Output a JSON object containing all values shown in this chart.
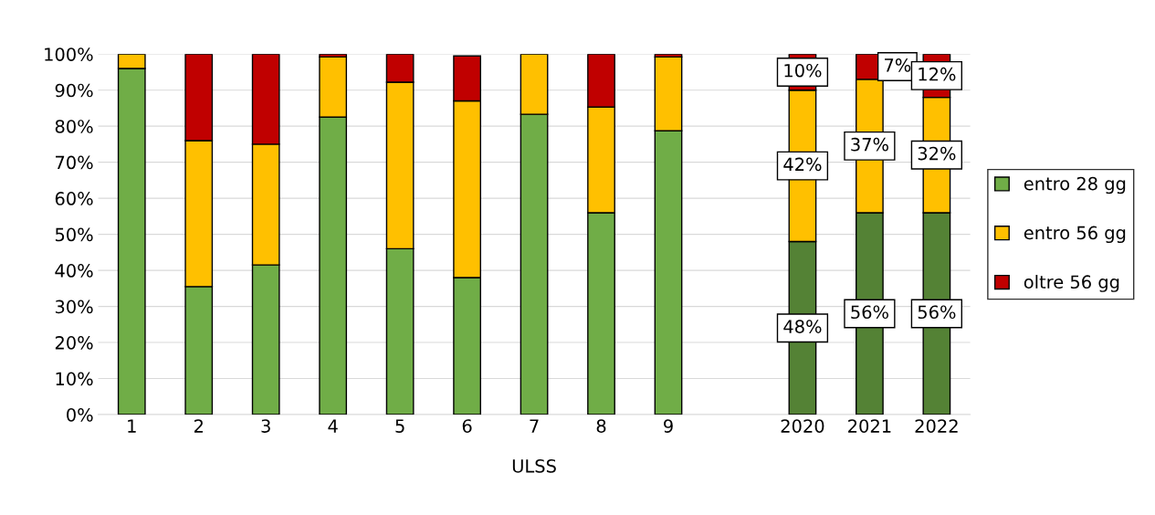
{
  "chart_data": {
    "type": "bar",
    "stacked": true,
    "xlabel": "ULSS",
    "categories": [
      "1",
      "2",
      "3",
      "4",
      "5",
      "6",
      "7",
      "8",
      "9",
      null,
      "2020",
      "2021",
      "2022"
    ],
    "series": [
      {
        "name": "entro 28 gg",
        "color": "#70ad47",
        "colors": [
          "#70ad47",
          "#70ad47",
          "#70ad47",
          "#70ad47",
          "#70ad47",
          "#70ad47",
          "#70ad47",
          "#70ad47",
          "#70ad47",
          null,
          "#548235",
          "#548235",
          "#548235"
        ],
        "values": [
          96,
          35.5,
          41.5,
          82.5,
          46,
          38,
          83.3,
          56,
          78.7,
          null,
          48,
          56,
          56
        ],
        "value_labels": [
          null,
          null,
          null,
          null,
          null,
          null,
          null,
          null,
          null,
          null,
          "48%",
          "56%",
          "56%"
        ]
      },
      {
        "name": "entro 56 gg",
        "color": "#ffc000",
        "values": [
          4,
          40.5,
          33.5,
          16.7,
          46.2,
          49,
          16.7,
          29.3,
          20.5,
          null,
          42,
          37,
          32
        ],
        "value_labels": [
          null,
          null,
          null,
          null,
          null,
          null,
          null,
          null,
          null,
          null,
          "42%",
          "37%",
          "32%"
        ]
      },
      {
        "name": "oltre 56 gg",
        "color": "#c00000",
        "values": [
          0,
          24,
          25,
          0.8,
          7.8,
          12.5,
          0,
          14.7,
          0.8,
          null,
          10,
          7,
          12
        ],
        "value_labels": [
          null,
          null,
          null,
          null,
          null,
          null,
          null,
          null,
          null,
          null,
          "10%",
          "7%",
          "12%"
        ]
      }
    ],
    "ylim": [
      0,
      100
    ],
    "yticks": [
      {
        "value": 0,
        "label": "0%"
      },
      {
        "value": 10,
        "label": "10%"
      },
      {
        "value": 20,
        "label": "20%"
      },
      {
        "value": 30,
        "label": "30%"
      },
      {
        "value": 40,
        "label": "40%"
      },
      {
        "value": 50,
        "label": "50%"
      },
      {
        "value": 60,
        "label": "60%"
      },
      {
        "value": 70,
        "label": "70%"
      },
      {
        "value": 80,
        "label": "80%"
      },
      {
        "value": 90,
        "label": "90%"
      },
      {
        "value": 100,
        "label": "100%"
      }
    ],
    "grid": "y",
    "legend": "right"
  }
}
